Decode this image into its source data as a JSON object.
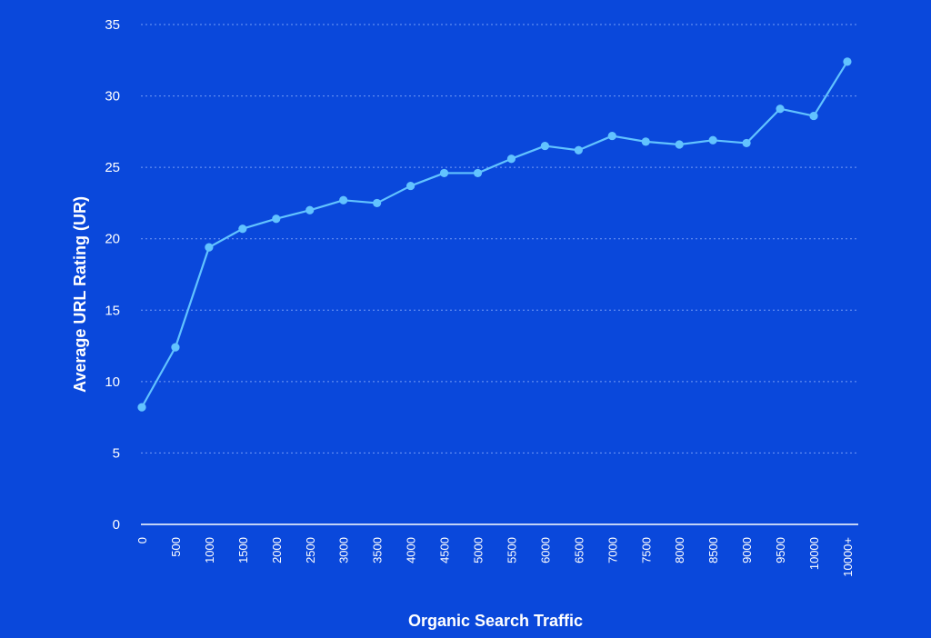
{
  "colors": {
    "background": "#0a48db",
    "line": "#62c3ff",
    "text": "#ffffff",
    "grid": "#8fb0ff"
  },
  "chart_data": {
    "type": "line",
    "title": "",
    "xlabel": "Organic Search Traffic",
    "ylabel": "Average URL Rating (UR)",
    "categories": [
      "0",
      "500",
      "1000",
      "1500",
      "2000",
      "2500",
      "3000",
      "3500",
      "4000",
      "4500",
      "5000",
      "5500",
      "6000",
      "6500",
      "7000",
      "7500",
      "8000",
      "8500",
      "9000",
      "9500",
      "10000",
      "10000+"
    ],
    "series": [
      {
        "values": [
          8.2,
          12.4,
          19.4,
          20.7,
          21.4,
          22.0,
          22.7,
          22.5,
          23.7,
          24.6,
          24.6,
          25.6,
          26.5,
          26.2,
          27.2,
          26.8,
          26.6,
          26.9,
          26.7,
          29.1,
          28.6,
          32.4
        ]
      }
    ],
    "yticks": [
      0,
      5,
      10,
      15,
      20,
      25,
      30,
      35
    ],
    "ylim": [
      0,
      35
    ],
    "grid": true,
    "legend": "none"
  }
}
